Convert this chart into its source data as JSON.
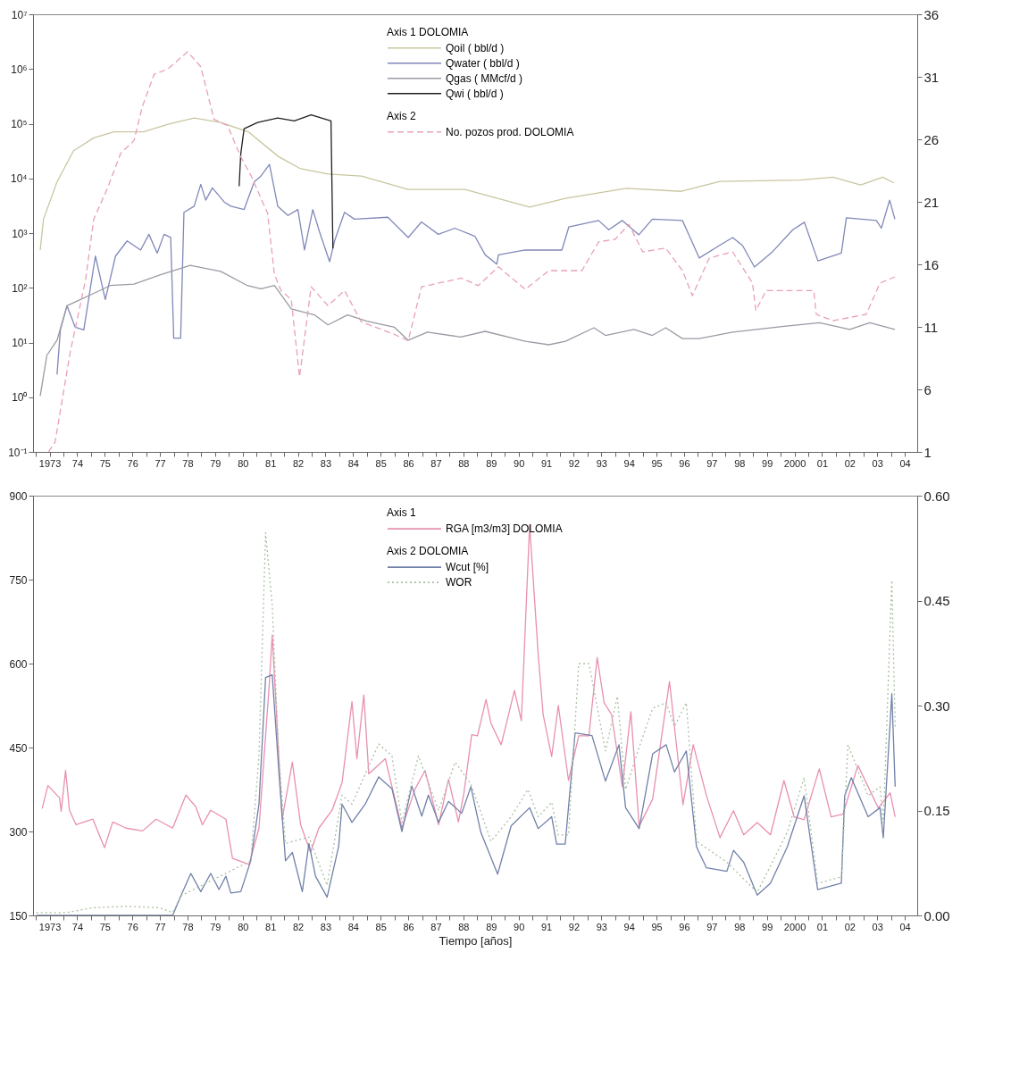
{
  "chart_data": [
    {
      "type": "line",
      "log": true,
      "legend": "top",
      "xlim": [
        1972.4,
        2004.45
      ],
      "ylim": [
        0.1,
        10000000
      ],
      "y2lim": [
        1,
        36
      ],
      "xticks": [
        {
          "value": 1972.5,
          "label": null
        },
        1973,
        {
          "value": 1973.5,
          "label": null
        },
        {
          "value": 1974,
          "label": "74"
        },
        {
          "value": 1974.5,
          "label": null
        },
        {
          "value": 1975,
          "label": "75"
        },
        {
          "value": 1975.5,
          "label": null
        },
        {
          "value": 1976,
          "label": "76"
        },
        {
          "value": 1976.5,
          "label": null
        },
        {
          "value": 1977,
          "label": "77"
        },
        {
          "value": 1977.5,
          "label": null
        },
        {
          "value": 1978,
          "label": "78"
        },
        {
          "value": 1978.5,
          "label": null
        },
        {
          "value": 1979,
          "label": "79"
        },
        {
          "value": 1979.5,
          "label": null
        },
        {
          "value": 1980,
          "label": "80"
        },
        {
          "value": 1980.5,
          "label": null
        },
        {
          "value": 1981,
          "label": "81"
        },
        {
          "value": 1981.5,
          "label": null
        },
        {
          "value": 1982,
          "label": "82"
        },
        {
          "value": 1982.5,
          "label": null
        },
        {
          "value": 1983,
          "label": "83"
        },
        {
          "value": 1983.5,
          "label": null
        },
        {
          "value": 1984,
          "label": "84"
        },
        {
          "value": 1984.5,
          "label": null
        },
        {
          "value": 1985,
          "label": "85"
        },
        {
          "value": 1985.5,
          "label": null
        },
        {
          "value": 1986,
          "label": "86"
        },
        {
          "value": 1986.5,
          "label": null
        },
        {
          "value": 1987,
          "label": "87"
        },
        {
          "value": 1987.5,
          "label": null
        },
        {
          "value": 1988,
          "label": "88"
        },
        {
          "value": 1988.5,
          "label": null
        },
        {
          "value": 1989,
          "label": "89"
        },
        {
          "value": 1989.5,
          "label": null
        },
        {
          "value": 1990,
          "label": "90"
        },
        {
          "value": 1990.5,
          "label": null
        },
        {
          "value": 1991,
          "label": "91"
        },
        {
          "value": 1991.5,
          "label": null
        },
        {
          "value": 1992,
          "label": "92"
        },
        {
          "value": 1992.5,
          "label": null
        },
        {
          "value": 1993,
          "label": "93"
        },
        {
          "value": 1993.5,
          "label": null
        },
        {
          "value": 1994,
          "label": "94"
        },
        {
          "value": 1994.5,
          "label": null
        },
        {
          "value": 1995,
          "label": "95"
        },
        {
          "value": 1995.5,
          "label": null
        },
        {
          "value": 1996,
          "label": "96"
        },
        {
          "value": 1996.5,
          "label": null
        },
        {
          "value": 1997,
          "label": "97"
        },
        {
          "value": 1997.5,
          "label": null
        },
        {
          "value": 1998,
          "label": "98"
        },
        {
          "value": 1998.5,
          "label": null
        },
        {
          "value": 1999,
          "label": "99"
        },
        {
          "value": 1999.5,
          "label": null
        },
        2000,
        {
          "value": 2000.5,
          "label": null
        },
        {
          "value": 2001,
          "label": "01"
        },
        {
          "value": 2001.5,
          "label": null
        },
        {
          "value": 2002,
          "label": "02"
        },
        {
          "value": 2002.5,
          "label": null
        },
        {
          "value": 2003,
          "label": "03"
        },
        {
          "value": 2003.5,
          "label": null
        },
        {
          "value": 2004,
          "label": "04"
        }
      ],
      "yticks": [
        {
          "value": 0.1,
          "label": "10⁻¹"
        },
        {
          "value": 1,
          "label": "10⁰"
        },
        {
          "value": 10,
          "label": "10¹"
        },
        {
          "value": 100,
          "label": "10²"
        },
        {
          "value": 1000,
          "label": "10³"
        },
        {
          "value": 10000,
          "label": "10⁴"
        },
        {
          "value": 100000,
          "label": "10⁵"
        },
        {
          "value": 1000000,
          "label": "10⁶"
        },
        {
          "value": 10000000,
          "label": "10⁷"
        }
      ],
      "y2ticks": [
        1,
        6,
        11,
        16,
        21,
        26,
        31,
        36
      ],
      "annotations": [
        "Axis 1 DOLOMIA",
        "Axis 2"
      ],
      "series": [
        {
          "name": "Qoil ( bbl/d )",
          "color": "#c9c6a0",
          "line_style": "solid",
          "x": [
            1972.66,
            1972.78,
            1973.27,
            1973.87,
            1974.6,
            1975.33,
            1976.4,
            1977.3,
            1978.24,
            1979.2,
            1980.2,
            1981.3,
            1982.1,
            1983.1,
            1984.3,
            1986.0,
            1988.06,
            1990.4,
            1991.7,
            1993.9,
            1995.9,
            1997.3,
            2000.2,
            2001.4,
            2002.4,
            2003.2,
            2003.6
          ],
          "values": [
            490,
            1800,
            8700,
            32000,
            55000,
            71000,
            71000,
            98000,
            127000,
            105000,
            71000,
            25000,
            15000,
            12000,
            11000,
            6300,
            6300,
            3000,
            4300,
            6600,
            5800,
            8800,
            9300,
            10500,
            7600,
            10500,
            8300
          ]
        },
        {
          "name": "Qwater ( bbl/d )",
          "color": "#8088b8",
          "line_style": "solid",
          "x": [
            1973.27,
            1973.39,
            1973.63,
            1973.93,
            1974.24,
            1974.66,
            1975.02,
            1975.39,
            1975.81,
            1976.3,
            1976.6,
            1976.9,
            1977.15,
            1977.39,
            1977.5,
            1977.75,
            1977.87,
            1978.24,
            1978.48,
            1978.66,
            1978.9,
            1979.33,
            1979.57,
            1980.05,
            1980.42,
            1980.66,
            1980.97,
            1981.27,
            1981.64,
            1982.0,
            1982.24,
            1982.54,
            1982.78,
            1983.15,
            1983.33,
            1983.69,
            1984.05,
            1985.26,
            1986.0,
            1986.48,
            1987.09,
            1987.69,
            1988.42,
            1988.79,
            1989.21,
            1989.27,
            1990.24,
            1991.57,
            1991.82,
            1992.9,
            1993.27,
            1993.76,
            1994.36,
            1994.85,
            1995.94,
            1996.55,
            1997.27,
            1997.76,
            1998.12,
            1998.55,
            1999.21,
            1999.94,
            2000.36,
            2000.85,
            2001.7,
            2001.88,
            2002.97,
            2003.15,
            2003.45,
            2003.64
          ],
          "values": [
            2.6,
            17,
            47,
            19,
            17,
            380,
            61,
            380,
            720,
            490,
            950,
            430,
            950,
            830,
            12,
            12,
            2400,
            3100,
            7800,
            4000,
            6700,
            3700,
            3100,
            2700,
            8700,
            11000,
            18000,
            3100,
            2100,
            2700,
            490,
            2700,
            1070,
            300,
            720,
            2400,
            1800,
            1950,
            830,
            1600,
            950,
            1230,
            870,
            400,
            270,
            400,
            490,
            490,
            1290,
            1700,
            1150,
            1700,
            930,
            1800,
            1700,
            350,
            590,
            830,
            590,
            240,
            460,
            1150,
            1580,
            310,
            430,
            1900,
            1700,
            1230,
            4000,
            1800
          ]
        },
        {
          "name": "Qgas ( MMcf/d )",
          "color": "#9a9aa4",
          "line_style": "solid",
          "x": [
            1972.66,
            1972.9,
            1973.27,
            1973.63,
            1974.12,
            1974.6,
            1975.2,
            1976.06,
            1977.02,
            1978.1,
            1979.2,
            1980.17,
            1980.66,
            1981.15,
            1981.76,
            1982.6,
            1983.09,
            1983.8,
            1984.5,
            1985.5,
            1986.0,
            1986.7,
            1987.9,
            1988.79,
            1990.24,
            1991.1,
            1991.7,
            1992.73,
            1993.15,
            1994.18,
            1994.85,
            1995.33,
            1995.94,
            1996.55,
            1997.76,
            1999.7,
            2000.91,
            2002.0,
            2002.73,
            2003.64
          ],
          "values": [
            1.05,
            5.8,
            11,
            47,
            61,
            79,
            110,
            117,
            174,
            257,
            200,
            110,
            96,
            110,
            41,
            32,
            21,
            32,
            24.5,
            19,
            11,
            15.5,
            12.6,
            16,
            10.5,
            9.1,
            10.5,
            18.6,
            13.5,
            17.4,
            13.5,
            18.6,
            11.8,
            11.8,
            15.5,
            20,
            23,
            17.4,
            23,
            17.4
          ]
        },
        {
          "name": "Qwi ( bbl/d )",
          "color": "#202020",
          "line_style": "solid",
          "x": [
            1979.87,
            1979.93,
            1980.05,
            1980.54,
            1981.27,
            1981.87,
            1982.48,
            1983.2,
            1983.27
          ],
          "values": [
            7200,
            28000,
            81000,
            105000,
            127000,
            112000,
            145000,
            112000,
            525
          ]
        },
        {
          "name": "No. pozos prod. DOLOMIA",
          "color": "#e8a0b8",
          "line_style": "dashed",
          "axis": "y2",
          "x": [
            1972.96,
            1973.2,
            1973.75,
            1974.3,
            1974.6,
            1975.1,
            1975.58,
            1976.06,
            1976.36,
            1976.79,
            1977.27,
            1978.0,
            1978.48,
            1978.96,
            1979.45,
            1979.93,
            1980.3,
            1980.9,
            1981.15,
            1981.39,
            1981.76,
            1982.06,
            1982.48,
            1983.09,
            1983.69,
            1984.3,
            1985.5,
            1986.0,
            1986.48,
            1987.93,
            1988.54,
            1989.27,
            1990.24,
            1991.1,
            1992.3,
            1992.9,
            1993.5,
            1994.0,
            1994.5,
            1995.33,
            1995.94,
            1996.3,
            1996.91,
            1997.76,
            1998.48,
            1998.6,
            1998.97,
            2000.7,
            2000.79,
            2001.4,
            2002.6,
            2003.1,
            2003.64
          ],
          "values": [
            1.0,
            1.8,
            9.0,
            14.7,
            19.6,
            22.1,
            24.9,
            25.9,
            28.6,
            31.2,
            31.6,
            33.0,
            31.8,
            27.6,
            27.1,
            24.6,
            23.1,
            20.1,
            15.2,
            13.9,
            13.2,
            7.0,
            14.2,
            12.7,
            13.9,
            11.4,
            10.4,
            9.9,
            14.2,
            14.9,
            14.3,
            15.8,
            14.0,
            15.5,
            15.5,
            17.8,
            18.0,
            19.2,
            17.0,
            17.3,
            15.5,
            13.5,
            16.5,
            17.0,
            14.5,
            12.3,
            13.9,
            13.9,
            12.0,
            11.5,
            12.0,
            14.5,
            15.0
          ]
        }
      ]
    },
    {
      "type": "line",
      "legend": "top",
      "xlabel": "Tiempo [años]",
      "xlim": [
        1972.4,
        2004.45
      ],
      "ylim": [
        150,
        900
      ],
      "y2lim": [
        0,
        0.6
      ],
      "xticks": [
        {
          "value": 1972.5,
          "label": null
        },
        1973,
        {
          "value": 1973.5,
          "label": null
        },
        {
          "value": 1974,
          "label": "74"
        },
        {
          "value": 1974.5,
          "label": null
        },
        {
          "value": 1975,
          "label": "75"
        },
        {
          "value": 1975.5,
          "label": null
        },
        {
          "value": 1976,
          "label": "76"
        },
        {
          "value": 1976.5,
          "label": null
        },
        {
          "value": 1977,
          "label": "77"
        },
        {
          "value": 1977.5,
          "label": null
        },
        {
          "value": 1978,
          "label": "78"
        },
        {
          "value": 1978.5,
          "label": null
        },
        {
          "value": 1979,
          "label": "79"
        },
        {
          "value": 1979.5,
          "label": null
        },
        {
          "value": 1980,
          "label": "80"
        },
        {
          "value": 1980.5,
          "label": null
        },
        {
          "value": 1981,
          "label": "81"
        },
        {
          "value": 1981.5,
          "label": null
        },
        {
          "value": 1982,
          "label": "82"
        },
        {
          "value": 1982.5,
          "label": null
        },
        {
          "value": 1983,
          "label": "83"
        },
        {
          "value": 1983.5,
          "label": null
        },
        {
          "value": 1984,
          "label": "84"
        },
        {
          "value": 1984.5,
          "label": null
        },
        {
          "value": 1985,
          "label": "85"
        },
        {
          "value": 1985.5,
          "label": null
        },
        {
          "value": 1986,
          "label": "86"
        },
        {
          "value": 1986.5,
          "label": null
        },
        {
          "value": 1987,
          "label": "87"
        },
        {
          "value": 1987.5,
          "label": null
        },
        {
          "value": 1988,
          "label": "88"
        },
        {
          "value": 1988.5,
          "label": null
        },
        {
          "value": 1989,
          "label": "89"
        },
        {
          "value": 1989.5,
          "label": null
        },
        {
          "value": 1990,
          "label": "90"
        },
        {
          "value": 1990.5,
          "label": null
        },
        {
          "value": 1991,
          "label": "91"
        },
        {
          "value": 1991.5,
          "label": null
        },
        {
          "value": 1992,
          "label": "92"
        },
        {
          "value": 1992.5,
          "label": null
        },
        {
          "value": 1993,
          "label": "93"
        },
        {
          "value": 1993.5,
          "label": null
        },
        {
          "value": 1994,
          "label": "94"
        },
        {
          "value": 1994.5,
          "label": null
        },
        {
          "value": 1995,
          "label": "95"
        },
        {
          "value": 1995.5,
          "label": null
        },
        {
          "value": 1996,
          "label": "96"
        },
        {
          "value": 1996.5,
          "label": null
        },
        {
          "value": 1997,
          "label": "97"
        },
        {
          "value": 1997.5,
          "label": null
        },
        {
          "value": 1998,
          "label": "98"
        },
        {
          "value": 1998.5,
          "label": null
        },
        {
          "value": 1999,
          "label": "99"
        },
        {
          "value": 1999.5,
          "label": null
        },
        2000,
        {
          "value": 2000.5,
          "label": null
        },
        {
          "value": 2001,
          "label": "01"
        },
        {
          "value": 2001.5,
          "label": null
        },
        {
          "value": 2002,
          "label": "02"
        },
        {
          "value": 2002.5,
          "label": null
        },
        {
          "value": 2003,
          "label": "03"
        },
        {
          "value": 2003.5,
          "label": null
        },
        {
          "value": 2004,
          "label": "04"
        }
      ],
      "yticks": [
        150,
        300,
        450,
        600,
        750,
        900
      ],
      "y2ticks": [
        {
          "value": 0,
          "label": "0.00"
        },
        {
          "value": 0.15,
          "label": "0.15"
        },
        {
          "value": 0.3,
          "label": "0.30"
        },
        {
          "value": 0.45,
          "label": "0.45"
        },
        {
          "value": 0.6,
          "label": "0.60"
        }
      ],
      "annotations": [
        "Axis 1",
        "Axis 2 DOLOMIA"
      ],
      "series": [
        {
          "name": "RGA [m3/m3] DOLOMIA",
          "color": "#e890b0",
          "line_style": "solid",
          "x": [
            1972.73,
            1972.94,
            1973.36,
            1973.42,
            1973.58,
            1973.72,
            1973.96,
            1974.57,
            1974.99,
            1975.29,
            1975.77,
            1976.37,
            1976.86,
            1977.46,
            1977.94,
            1978.3,
            1978.54,
            1978.84,
            1979.39,
            1979.63,
            1980.23,
            1980.59,
            1980.95,
            1981.07,
            1981.43,
            1981.8,
            1982.1,
            1982.46,
            1982.76,
            1983.24,
            1983.6,
            1983.96,
            1984.14,
            1984.39,
            1984.57,
            1985.17,
            1985.77,
            1986.25,
            1986.61,
            1987.1,
            1987.46,
            1987.82,
            1988.02,
            1988.3,
            1988.51,
            1988.82,
            1989.0,
            1989.37,
            1989.85,
            1990.1,
            1990.4,
            1990.71,
            1990.89,
            1991.2,
            1991.44,
            1991.81,
            1992.18,
            1992.55,
            1992.85,
            1993.1,
            1993.37,
            1993.76,
            1994.07,
            1994.37,
            1994.86,
            1995.47,
            1995.96,
            1996.33,
            1996.81,
            1997.3,
            1997.79,
            1998.16,
            1998.65,
            1999.13,
            1999.62,
            1999.99,
            2000.35,
            2000.9,
            2001.33,
            2001.76,
            2002.3,
            2002.67,
            2003.04,
            2003.47,
            2003.65
          ],
          "values": [
            341,
            382,
            360,
            336,
            409,
            338,
            312,
            322,
            271,
            317,
            306,
            301,
            322,
            306,
            365,
            344,
            312,
            338,
            322,
            252,
            241,
            306,
            554,
            651,
            322,
            424,
            312,
            263,
            306,
            338,
            387,
            532,
            430,
            544,
            403,
            430,
            306,
            376,
            409,
            312,
            393,
            317,
            369,
            473,
            471,
            536,
            493,
            455,
            552,
            498,
            848,
            617,
            509,
            434,
            525,
            391,
            471,
            471,
            611,
            530,
            509,
            380,
            514,
            309,
            358,
            568,
            348,
            455,
            364,
            289,
            337,
            294,
            316,
            294,
            391,
            326,
            321,
            412,
            326,
            331,
            418,
            380,
            342,
            369,
            326
          ]
        },
        {
          "name": "Wcut [%]",
          "color": "#7080a8",
          "line_style": "solid",
          "axis": "y2",
          "x": [
            1972.52,
            1977.46,
            1977.76,
            1978.12,
            1978.48,
            1978.84,
            1979.14,
            1979.39,
            1979.57,
            1979.93,
            1980.29,
            1980.59,
            1980.83,
            1981.07,
            1981.31,
            1981.55,
            1981.8,
            1982.16,
            1982.4,
            1982.64,
            1983.06,
            1983.48,
            1983.6,
            1983.96,
            1984.44,
            1984.93,
            1985.41,
            1985.77,
            1986.13,
            1986.49,
            1986.73,
            1987.1,
            1987.46,
            1987.94,
            1988.27,
            1988.63,
            1989.24,
            1989.73,
            1990.4,
            1990.71,
            1991.2,
            1991.38,
            1991.69,
            1992.05,
            1992.66,
            1993.15,
            1993.64,
            1993.88,
            1994.37,
            1994.86,
            1995.35,
            1995.65,
            1996.08,
            1996.45,
            1996.81,
            1997.55,
            1997.79,
            1998.16,
            1998.65,
            1999.13,
            1999.74,
            2000.35,
            2000.84,
            2001.7,
            2001.82,
            2002.06,
            2002.67,
            2003.1,
            2003.22,
            2003.53,
            2003.65
          ],
          "values": [
            0.0,
            0.0,
            0.028,
            0.06,
            0.034,
            0.06,
            0.037,
            0.056,
            0.032,
            0.034,
            0.078,
            0.159,
            0.34,
            0.344,
            0.206,
            0.078,
            0.09,
            0.034,
            0.103,
            0.056,
            0.026,
            0.099,
            0.159,
            0.133,
            0.159,
            0.198,
            0.181,
            0.12,
            0.185,
            0.142,
            0.172,
            0.133,
            0.163,
            0.146,
            0.184,
            0.119,
            0.059,
            0.128,
            0.154,
            0.124,
            0.141,
            0.102,
            0.102,
            0.261,
            0.257,
            0.192,
            0.244,
            0.154,
            0.124,
            0.231,
            0.244,
            0.205,
            0.235,
            0.098,
            0.068,
            0.063,
            0.093,
            0.076,
            0.029,
            0.046,
            0.098,
            0.171,
            0.037,
            0.046,
            0.171,
            0.197,
            0.141,
            0.154,
            0.111,
            0.317,
            0.184
          ]
        },
        {
          "name": "WOR",
          "color": "#a8c0a0",
          "line_style": "dotted",
          "axis": "y2",
          "x": [
            1972.52,
            1973.6,
            1974.57,
            1975.77,
            1976.98,
            1977.46,
            1977.76,
            1980.29,
            1980.59,
            1980.83,
            1981.07,
            1981.31,
            1981.55,
            1982.4,
            1983.06,
            1983.6,
            1983.96,
            1984.44,
            1984.93,
            1985.41,
            1985.77,
            1986.37,
            1987.1,
            1987.7,
            1988.27,
            1989.0,
            1989.73,
            1990.34,
            1990.71,
            1991.2,
            1991.44,
            1991.81,
            1992.18,
            1992.55,
            1993.15,
            1993.58,
            1993.88,
            1994.37,
            1994.86,
            1995.35,
            1995.65,
            1996.08,
            1996.45,
            1997.55,
            1998.65,
            1999.74,
            2000.35,
            2000.84,
            2001.7,
            2001.94,
            2002.67,
            2003.1,
            2003.22,
            2003.53,
            2003.65
          ],
          "values": [
            0.004,
            0.004,
            0.011,
            0.013,
            0.011,
            0.004,
            0.028,
            0.078,
            0.228,
            0.547,
            0.443,
            0.228,
            0.103,
            0.112,
            0.043,
            0.172,
            0.159,
            0.202,
            0.245,
            0.228,
            0.133,
            0.228,
            0.15,
            0.219,
            0.188,
            0.106,
            0.141,
            0.18,
            0.141,
            0.162,
            0.115,
            0.115,
            0.36,
            0.36,
            0.235,
            0.313,
            0.18,
            0.24,
            0.296,
            0.304,
            0.27,
            0.304,
            0.106,
            0.076,
            0.033,
            0.119,
            0.197,
            0.046,
            0.055,
            0.244,
            0.171,
            0.184,
            0.132,
            0.479,
            0.27
          ]
        }
      ]
    }
  ]
}
